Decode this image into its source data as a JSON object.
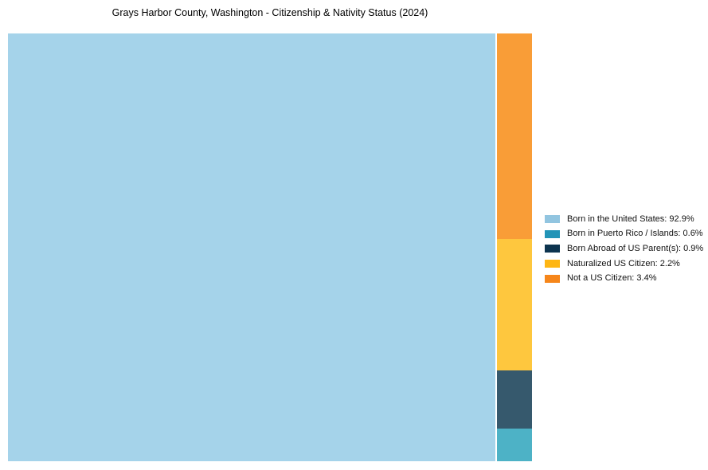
{
  "title": "Grays Harbor County, Washington - Citizenship & Nativity Status (2024)",
  "chart_data": {
    "type": "treemap",
    "title": "Grays Harbor County, Washington - Citizenship & Nativity Status (2024)",
    "unit": "%",
    "total": 100,
    "grid": false,
    "legend_position": "right-center",
    "categories": [
      "Born in the United States",
      "Born in Puerto Rico / Islands",
      "Born Abroad of US Parent(s)",
      "Naturalized US Citizen",
      "Not a US Citizen"
    ],
    "values": [
      92.9,
      0.6,
      0.9,
      2.2,
      3.4
    ],
    "layout_note": "large tile for Born in the United States on left; right column stacked top-to-bottom: Not a US Citizen, Naturalized US Citizen, Born Abroad of US Parent(s), Born in Puerto Rico / Islands",
    "segments": [
      {
        "label": "Born in the United States",
        "value": 92.9,
        "legend_label": "Born in the United States: 92.9%",
        "tile_color": "#a5d3ea",
        "legend_color": "#92c5e0"
      },
      {
        "label": "Born in Puerto Rico / Islands",
        "value": 0.6,
        "legend_label": "Born in Puerto Rico / Islands: 0.6%",
        "tile_color": "#4db2c6",
        "legend_color": "#2294b7"
      },
      {
        "label": "Born Abroad of US Parent(s)",
        "value": 0.9,
        "legend_label": "Born Abroad of US Parent(s): 0.9%",
        "tile_color": "#36596d",
        "legend_color": "#0d344f"
      },
      {
        "label": "Naturalized US Citizen",
        "value": 2.2,
        "legend_label": "Naturalized US Citizen: 2.2%",
        "tile_color": "#fec73e",
        "legend_color": "#feb614"
      },
      {
        "label": "Not a US Citizen",
        "value": 3.4,
        "legend_label": "Not a US Citizen: 3.4%",
        "tile_color": "#f99d37",
        "legend_color": "#f6861a"
      }
    ]
  }
}
